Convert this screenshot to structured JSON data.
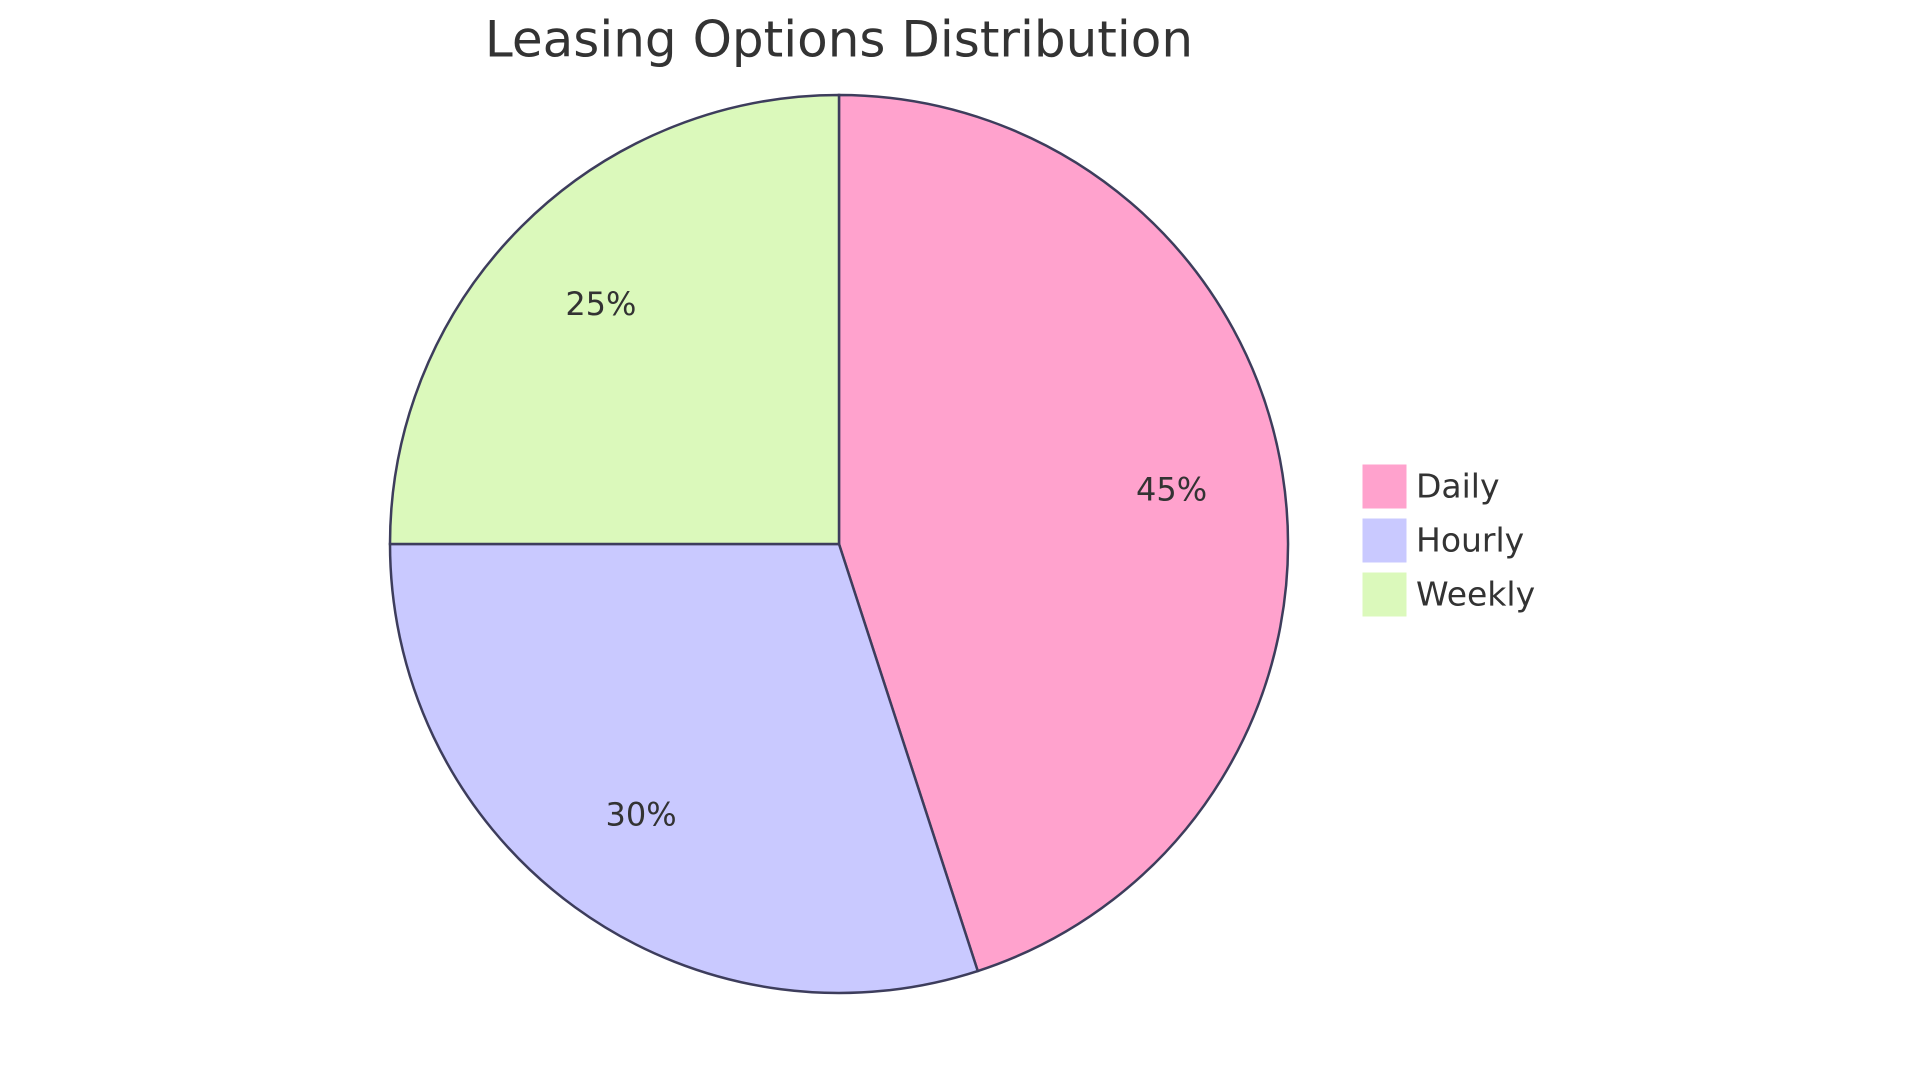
{
  "chart_data": {
    "type": "pie",
    "title": "Leasing Options Distribution",
    "categories": [
      "Daily",
      "Hourly",
      "Weekly"
    ],
    "values": [
      45,
      30,
      25
    ],
    "value_labels": [
      "45%",
      "30%",
      "25%"
    ],
    "colors": [
      "#ffa2cd",
      "#c9c9ff",
      "#dbf9bb"
    ],
    "legend": "right"
  }
}
